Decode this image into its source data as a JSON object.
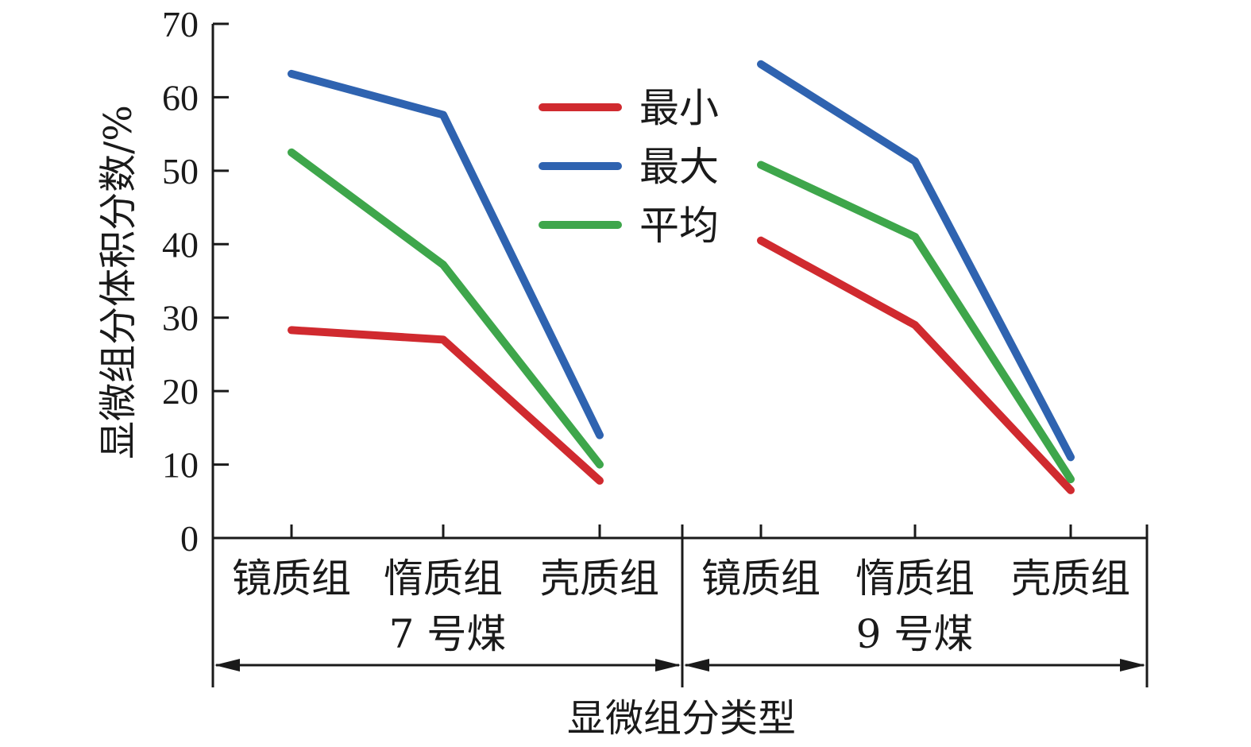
{
  "chart_data": {
    "type": "line",
    "ylabel": "显微组分体积分数/%",
    "xlabel": "显微组分类型",
    "ylim": [
      0,
      70
    ],
    "yticks": [
      0,
      10,
      20,
      30,
      40,
      50,
      60,
      70
    ],
    "groups": [
      {
        "name": "7 号煤",
        "categories": [
          "镜质组",
          "惰质组",
          "壳质组"
        ]
      },
      {
        "name": "9 号煤",
        "categories": [
          "镜质组",
          "惰质组",
          "壳质组"
        ]
      }
    ],
    "legend_position": "top-center",
    "grid": false,
    "series": [
      {
        "name": "最小",
        "color": "#d02a2f",
        "values": [
          [
            28.3,
            27.0,
            7.8
          ],
          [
            40.5,
            29.0,
            6.5
          ]
        ]
      },
      {
        "name": "最大",
        "color": "#2f63b0",
        "values": [
          [
            63.2,
            57.6,
            14.0
          ],
          [
            64.5,
            51.3,
            11.0
          ]
        ]
      },
      {
        "name": "平均",
        "color": "#3ea64b",
        "values": [
          [
            52.5,
            37.2,
            10.0
          ],
          [
            50.8,
            41.0,
            8.0
          ]
        ]
      }
    ]
  }
}
